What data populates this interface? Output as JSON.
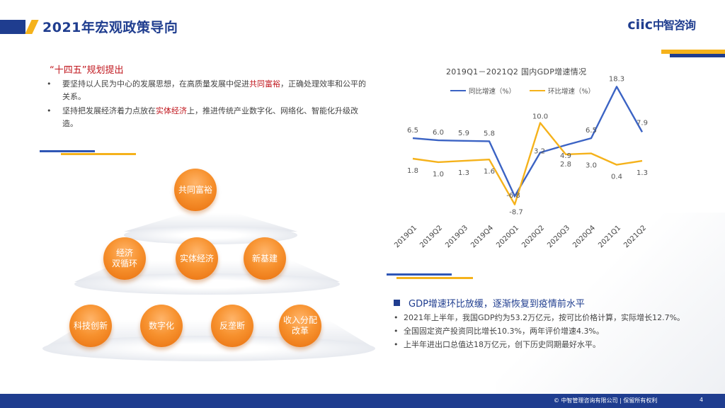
{
  "header": {
    "title": "2021年宏观政策导向",
    "logo_latin": "ciic",
    "logo_cn": "中智咨询"
  },
  "policy": {
    "title": "“十四五”规划提出",
    "items": [
      {
        "bullet": "•",
        "pre": "要坚持以人民为中心的发展思想，在高质量发展中促进",
        "highlight": "共同富裕",
        "post": "，正确处理效率和公平的关系。"
      },
      {
        "bullet": "•",
        "pre": "坚持把发展经济着力点放在",
        "highlight": "实体经济",
        "post": "上，推进传统产业数字化、网络化、智能化升级改造。"
      }
    ]
  },
  "pyramid": {
    "top": [
      "共同富裕"
    ],
    "middle": [
      "经济\n双循环",
      "实体经济",
      "新基建"
    ],
    "bottom": [
      "科技创新",
      "数字化",
      "反垄断",
      "收入分配\n改革"
    ]
  },
  "chart_data": {
    "type": "line",
    "title": "2019Q1－2021Q2 国内GDP增速情况",
    "categories": [
      "2019Q1",
      "2019Q2",
      "2019Q3",
      "2019Q4",
      "2020Q1",
      "2020Q2",
      "2020Q3",
      "2020Q4",
      "2021Q1",
      "2021Q2"
    ],
    "series": [
      {
        "name": "同比增速（%）",
        "color": "#3b63c4",
        "values": [
          6.5,
          6.0,
          5.9,
          5.8,
          -6.8,
          3.2,
          4.9,
          6.5,
          18.3,
          7.9
        ]
      },
      {
        "name": "环比增速（%）",
        "color": "#f5b21b",
        "values": [
          1.8,
          1.0,
          1.3,
          1.6,
          -8.7,
          10.0,
          2.8,
          3.0,
          0.4,
          1.3
        ]
      }
    ],
    "label_text": {
      "s1": [
        "6.5",
        "6.0",
        "5.9",
        "5.8",
        "-6.8",
        "3.2",
        "4.9",
        "6.5",
        "18.3",
        "7.9"
      ],
      "s2": [
        "1.8",
        "1.0",
        "1.3",
        "1.6",
        "-8.7",
        "10.0",
        "2.8",
        "3.0",
        "0.4",
        "1.3"
      ]
    },
    "xlabel": "",
    "ylabel": "",
    "grid": false,
    "legend": "top"
  },
  "gdp": {
    "title": "GDP增速环比放缓，逐渐恢复到疫情前水平",
    "items": [
      "2021年上半年，我国GDP约为53.2万亿元，按可比价格计算，实际增长12.7%。",
      "全国固定资产投资同比增长10.3%，两年评价增速4.3%。",
      "上半年进出口总值达18万亿元，创下历史同期最好水平。"
    ],
    "bullet": "•"
  },
  "footer": {
    "copyright": "© 中智管理咨询有限公司 | 保留所有权利",
    "page": "4"
  }
}
